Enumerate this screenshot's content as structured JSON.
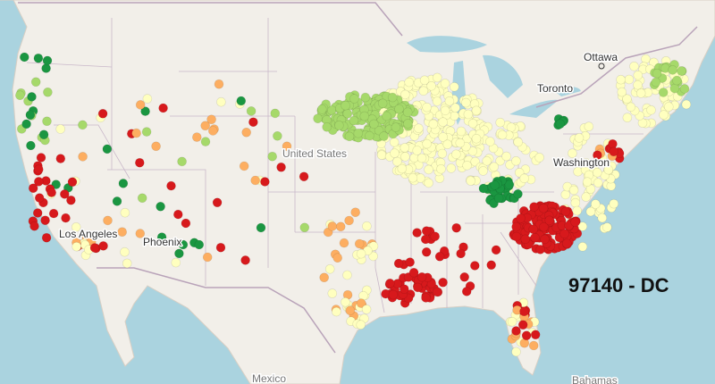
{
  "map": {
    "labels": [
      "Ottawa",
      "Toronto",
      "United States",
      "Washington",
      "Los Angeles",
      "Phoenix",
      "Mexico",
      "Bahamas"
    ],
    "overlay": "97140 - DC"
  }
}
